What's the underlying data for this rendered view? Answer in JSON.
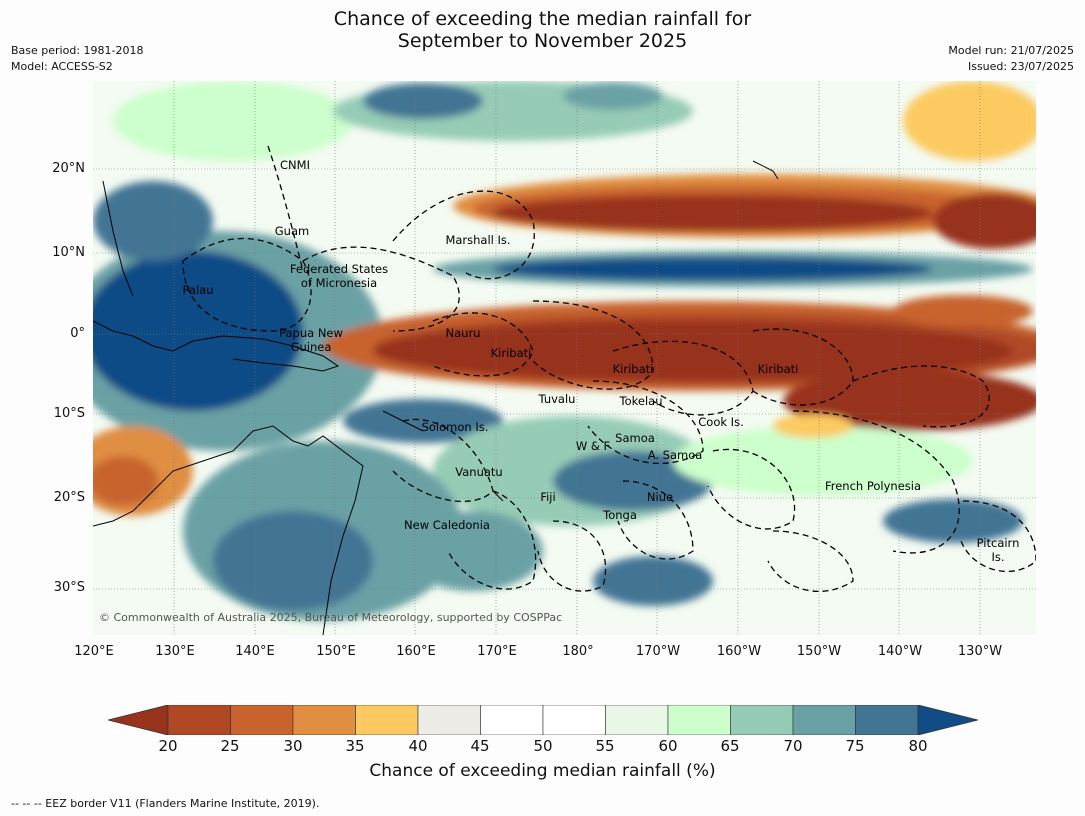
{
  "header": {
    "title_line1": "Chance of exceeding the median rainfall for",
    "title_line2": "September to November 2025",
    "base_period": "Base period: 1981-2018",
    "model": "Model: ACCESS-S2",
    "model_run": "Model run: 21/07/2025",
    "issued": "Issued: 23/07/2025"
  },
  "map": {
    "lat_labels": [
      "20°N",
      "10°N",
      "0°",
      "10°S",
      "20°S",
      "30°S"
    ],
    "lon_labels": [
      "120°E",
      "130°E",
      "140°E",
      "150°E",
      "160°E",
      "170°E",
      "180°",
      "170°W",
      "160°W",
      "150°W",
      "140°W",
      "130°W"
    ],
    "region_labels": [
      "CNMI",
      "Guam",
      "Marshall Is.",
      "Federated States",
      "of Micronesia",
      "Palau",
      "Papua New",
      "Guinea",
      "Nauru",
      "Kiribati",
      "Kiribati",
      "Kiribati",
      "Tuvalu",
      "Tokelau",
      "Cook Is.",
      "Solomon Is.",
      "Samoa",
      "W & F",
      "A. Samoa",
      "Vanuatu",
      "Fiji",
      "Niue",
      "Tonga",
      "French Polynesia",
      "New Caledonia",
      "Pitcairn",
      "Is."
    ],
    "copyright": "© Commonwealth of Australia 2025, Bureau of Meteorology, supported by COSPPac",
    "colors": {
      "c15": "#97331d",
      "c20": "#b04826",
      "c25": "#c8632d",
      "c30": "#e08e42",
      "c35": "#fcca60",
      "c40": "#eeece6",
      "c45": "#ffffff",
      "c50": "#ffffff",
      "c55": "#e8f7e6",
      "c60": "#ccffcc",
      "c65": "#96ccb6",
      "c70": "#6aa1a5",
      "c75": "#427594",
      "c80": "#114c86",
      "ocean": "#ffffff",
      "border": "#000000"
    }
  },
  "colorbar": {
    "ticks": [
      "20",
      "25",
      "30",
      "35",
      "40",
      "45",
      "50",
      "55",
      "60",
      "65",
      "70",
      "75",
      "80"
    ],
    "title": "Chance of exceeding median rainfall (%)"
  },
  "footnote": "--  --  -- EEZ border V11 (Flanders Marine Institute, 2019)."
}
